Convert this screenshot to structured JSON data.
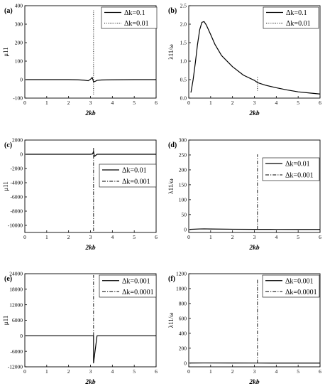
{
  "chart_data": [
    {
      "panel": "(a)",
      "type": "line",
      "xlabel": "2kb",
      "ylabel": "μ11",
      "xlim": [
        0,
        6
      ],
      "ylim": [
        -100,
        400
      ],
      "xticks": [
        0,
        1,
        2,
        3,
        4,
        5,
        6
      ],
      "yticks": [
        -100,
        0,
        100,
        200,
        300,
        400
      ],
      "xtick_labels": [
        "0",
        "1",
        "2",
        "3",
        "4",
        "5",
        "6"
      ],
      "ytick_labels": [
        "-100",
        "0",
        "100",
        "200",
        "300",
        "400"
      ],
      "legend_position": "top-right",
      "series": [
        {
          "name": "Δk=0.1",
          "style": "solid",
          "x": [
            0.05,
            0.5,
            1.0,
            1.5,
            2.0,
            2.4,
            2.7,
            2.9,
            3.0,
            3.08,
            3.14,
            3.2,
            3.3,
            3.5,
            4.0,
            5.0,
            6.0
          ],
          "y": [
            0,
            0,
            0,
            0,
            0,
            -1,
            -3,
            -6,
            2,
            12,
            -12,
            -10,
            -4,
            -2,
            -1,
            0,
            0
          ]
        },
        {
          "name": "Δk=0.01",
          "style": "dotted",
          "x": [
            3.14,
            3.14
          ],
          "y": [
            -80,
            380
          ]
        }
      ]
    },
    {
      "panel": "(b)",
      "type": "line",
      "xlabel": "2kb",
      "ylabel": "λ11/ω",
      "xlim": [
        0,
        6
      ],
      "ylim": [
        0,
        2.5
      ],
      "xticks": [
        0,
        1,
        2,
        3,
        4,
        5,
        6
      ],
      "yticks": [
        0,
        0.5,
        1.0,
        1.5,
        2.0,
        2.5
      ],
      "xtick_labels": [
        "0",
        "1",
        "2",
        "3",
        "4",
        "5",
        "6"
      ],
      "ytick_labels": [
        "0.0",
        "0.5",
        "1.0",
        "1.5",
        "2.0",
        "2.5"
      ],
      "legend_position": "top-right",
      "series": [
        {
          "name": "Δk=0.1",
          "style": "solid",
          "x": [
            0.1,
            0.2,
            0.3,
            0.4,
            0.5,
            0.6,
            0.7,
            0.8,
            1.0,
            1.2,
            1.5,
            2.0,
            2.5,
            3.0,
            3.14,
            3.5,
            4.0,
            4.5,
            5.0,
            5.5,
            6.0
          ],
          "y": [
            0.15,
            0.5,
            0.95,
            1.45,
            1.85,
            2.05,
            2.07,
            1.98,
            1.72,
            1.45,
            1.15,
            0.85,
            0.62,
            0.48,
            0.42,
            0.35,
            0.28,
            0.22,
            0.17,
            0.14,
            0.11
          ]
        },
        {
          "name": "Δk=0.01",
          "style": "dotted",
          "x": [
            3.14,
            3.14
          ],
          "y": [
            0.2,
            0.6
          ]
        }
      ]
    },
    {
      "panel": "(c)",
      "type": "line",
      "xlabel": "2kb",
      "ylabel": "μ11",
      "xlim": [
        0,
        6
      ],
      "ylim": [
        -11000,
        2000
      ],
      "xticks": [
        0,
        1,
        2,
        3,
        4,
        5,
        6
      ],
      "yticks": [
        -10000,
        -8000,
        -6000,
        -4000,
        -2000,
        0,
        2000
      ],
      "xtick_labels": [
        "0",
        "1",
        "2",
        "3",
        "4",
        "5",
        "6"
      ],
      "ytick_labels": [
        "-10000",
        "-8000",
        "-6000",
        "-4000",
        "-2000",
        "0",
        "2000"
      ],
      "legend_position": "center-right",
      "series": [
        {
          "name": "Δk=0.01",
          "style": "solid",
          "x": [
            0.05,
            3.0,
            3.1,
            3.14,
            3.18,
            3.3,
            6.0
          ],
          "y": [
            0,
            0,
            50,
            400,
            -300,
            0,
            0
          ]
        },
        {
          "name": "Δk=0.001",
          "style": "dashdot",
          "x": [
            3.14,
            3.14
          ],
          "y": [
            900,
            -10800
          ]
        }
      ]
    },
    {
      "panel": "(d)",
      "type": "line",
      "xlabel": "2kb",
      "ylabel": "λ11/ω",
      "xlim": [
        0,
        6
      ],
      "ylim": [
        -10,
        300
      ],
      "xticks": [
        0,
        1,
        2,
        3,
        4,
        5,
        6
      ],
      "yticks": [
        0,
        50,
        100,
        150,
        200,
        250,
        300
      ],
      "xtick_labels": [
        "0",
        "1",
        "2",
        "3",
        "4",
        "5",
        "6"
      ],
      "ytick_labels": [
        "0",
        "50",
        "100",
        "150",
        "200",
        "250",
        "300"
      ],
      "legend_position": "top-right",
      "series": [
        {
          "name": "Δk=0.01",
          "style": "solid",
          "x": [
            0.05,
            0.5,
            0.7,
            1.0,
            2.0,
            3.0,
            4.0,
            5.0,
            6.0
          ],
          "y": [
            0.5,
            1.8,
            2.1,
            1.7,
            0.9,
            0.5,
            0.3,
            0.2,
            0.1
          ]
        },
        {
          "name": "Δk=0.001",
          "style": "dashdot",
          "x": [
            3.14,
            3.14
          ],
          "y": [
            0,
            252
          ]
        }
      ]
    },
    {
      "panel": "(e)",
      "type": "line",
      "xlabel": "2kb",
      "ylabel": "μ11",
      "xlim": [
        0,
        6
      ],
      "ylim": [
        -12000,
        24000
      ],
      "xticks": [
        0,
        1,
        2,
        3,
        4,
        5,
        6
      ],
      "yticks": [
        -12000,
        -6000,
        0,
        6000,
        12000,
        18000,
        24000
      ],
      "xtick_labels": [
        "0",
        "1",
        "2",
        "3",
        "4",
        "5",
        "6"
      ],
      "ytick_labels": [
        "-12000",
        "-6000",
        "0",
        "6000",
        "12000",
        "18000",
        "24000"
      ],
      "legend_position": "top-right",
      "series": [
        {
          "name": "Δk=0.001",
          "style": "solid",
          "x": [
            0.05,
            3.0,
            3.14,
            3.14,
            3.3,
            6.0
          ],
          "y": [
            0,
            0,
            0,
            -10500,
            0,
            0
          ]
        },
        {
          "name": "Δk=0.0001",
          "style": "dashdot",
          "x": [
            3.14,
            3.14
          ],
          "y": [
            0,
            23500
          ]
        }
      ]
    },
    {
      "panel": "(f)",
      "type": "line",
      "xlabel": "2kb",
      "ylabel": "λ11/ω",
      "xlim": [
        0,
        6
      ],
      "ylim": [
        -50,
        1200
      ],
      "xticks": [
        0,
        1,
        2,
        3,
        4,
        5,
        6
      ],
      "yticks": [
        0,
        200,
        400,
        600,
        800,
        1000,
        1200
      ],
      "xtick_labels": [
        "0",
        "1",
        "2",
        "3",
        "4",
        "5",
        "6"
      ],
      "ytick_labels": [
        "0",
        "200",
        "400",
        "600",
        "800",
        "1000",
        "1200"
      ],
      "legend_position": "top-right",
      "series": [
        {
          "name": "Δk=0.001",
          "style": "solid",
          "x": [
            0.05,
            0.7,
            2.0,
            3.14,
            4.0,
            6.0
          ],
          "y": [
            1,
            2,
            1,
            0.5,
            0.3,
            0.1
          ]
        },
        {
          "name": "Δk=0.0001",
          "style": "dashdot",
          "x": [
            3.14,
            3.14
          ],
          "y": [
            0,
            1120
          ]
        }
      ]
    }
  ]
}
